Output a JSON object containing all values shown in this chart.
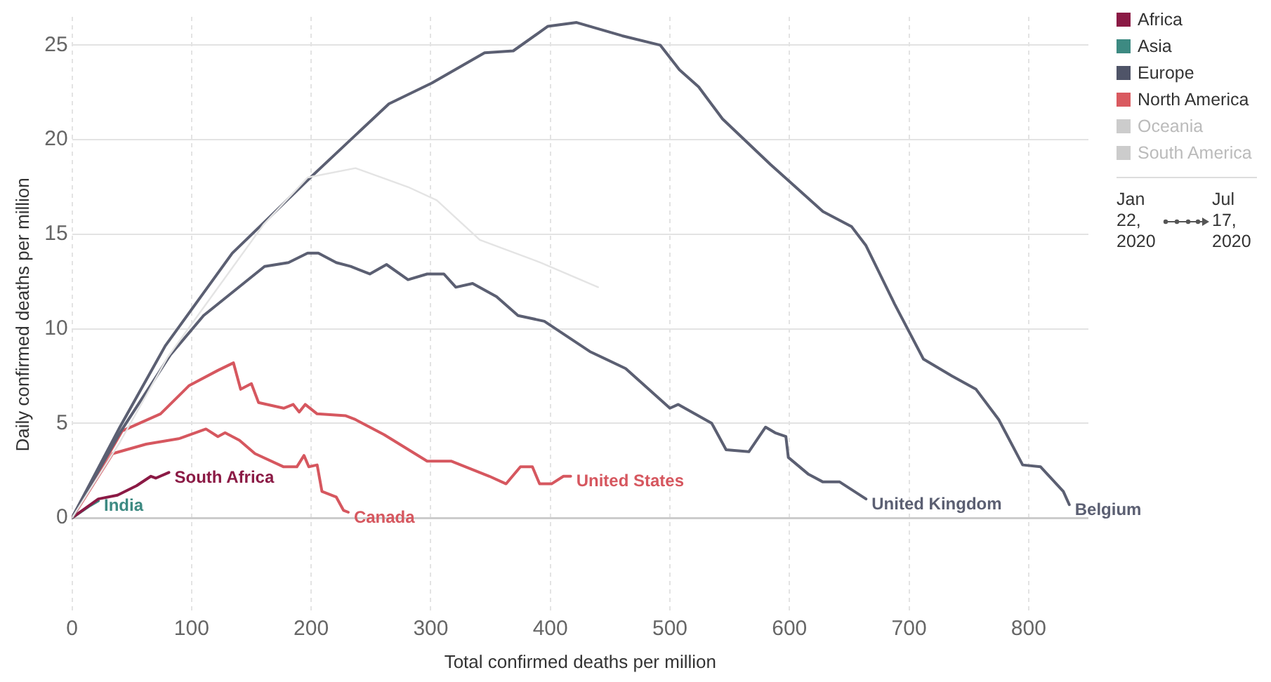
{
  "chart_data": {
    "type": "line",
    "xlabel": "Total confirmed deaths per million",
    "ylabel": "Daily confirmed deaths per million",
    "xlim": [
      0,
      850
    ],
    "ylim": [
      -5,
      26.5
    ],
    "xticks": [
      0,
      100,
      200,
      300,
      400,
      500,
      600,
      700,
      800
    ],
    "yticks": [
      0,
      5,
      10,
      15,
      20,
      25
    ],
    "grid": true,
    "legend": "right",
    "marker": "none",
    "line_style": "solid",
    "annotations": [
      "Jan 22, 2020",
      "Jul 17, 2020"
    ],
    "series": [
      {
        "color": "#e4e4e4",
        "x": [
          0,
          40,
          80,
          120,
          160,
          197,
          237,
          281,
          305,
          341,
          392,
          440
        ],
        "values": [
          0,
          4,
          8.5,
          12,
          15.5,
          18,
          18.5,
          17.5,
          16.8,
          14.7,
          13.5,
          12.2
        ]
      },
      {
        "name": "Belgium",
        "color": "#5b5f72",
        "x": [
          0,
          40,
          78,
          134,
          201,
          265,
          301,
          345,
          369,
          398,
          422,
          460,
          492,
          508,
          524,
          544,
          584,
          628,
          652,
          664,
          688,
          712,
          736,
          756,
          775,
          795,
          810,
          829,
          834
        ],
        "values": [
          0,
          4.8,
          9.1,
          14,
          18.1,
          21.9,
          23,
          24.6,
          24.7,
          26,
          26.2,
          25.5,
          25,
          23.7,
          22.8,
          21.1,
          18.7,
          16.2,
          15.4,
          14.4,
          11.3,
          8.4,
          7.5,
          6.8,
          5.2,
          2.8,
          2.7,
          1.4,
          0.7
        ]
      },
      {
        "name": "United Kingdom",
        "color": "#5b5f72",
        "x": [
          0,
          40,
          82,
          110,
          161,
          181,
          197,
          206,
          221,
          233,
          249,
          263,
          281,
          297,
          311,
          321,
          335,
          355,
          373,
          395,
          433,
          463,
          500,
          507,
          535,
          547,
          566,
          580,
          588,
          597,
          599,
          616,
          628,
          642,
          664
        ],
        "values": [
          0,
          4.5,
          8.6,
          10.7,
          13.3,
          13.5,
          14,
          14,
          13.5,
          13.3,
          12.9,
          13.4,
          12.6,
          12.9,
          12.9,
          12.2,
          12.4,
          11.7,
          10.7,
          10.4,
          8.8,
          7.9,
          5.8,
          6,
          5,
          3.6,
          3.5,
          4.8,
          4.5,
          4.3,
          3.2,
          2.3,
          1.9,
          1.9,
          1
        ]
      },
      {
        "name": "United States",
        "color": "#d6575f",
        "x": [
          0,
          42,
          74,
          98,
          122,
          135,
          141,
          150,
          156,
          177,
          185,
          190,
          195,
          205,
          229,
          237,
          261,
          297,
          317,
          349,
          363,
          375,
          385,
          391,
          401,
          411,
          417
        ],
        "values": [
          0,
          4.6,
          5.5,
          7,
          7.8,
          8.2,
          6.8,
          7.1,
          6.1,
          5.8,
          6,
          5.6,
          6,
          5.5,
          5.4,
          5.2,
          4.4,
          3,
          3,
          2.2,
          1.8,
          2.7,
          2.7,
          1.8,
          1.8,
          2.2,
          2.2
        ]
      },
      {
        "name": "Canada",
        "color": "#d6575f",
        "x": [
          0,
          34,
          62,
          90,
          112,
          122,
          128,
          140,
          153,
          177,
          188,
          194,
          198,
          205,
          209,
          221,
          227,
          231
        ],
        "values": [
          0,
          3.4,
          3.9,
          4.2,
          4.7,
          4.3,
          4.5,
          4.1,
          3.4,
          2.7,
          2.7,
          3.3,
          2.7,
          2.8,
          1.4,
          1.1,
          0.4,
          0.3
        ]
      },
      {
        "name": "South Africa",
        "color": "#8b1a45",
        "x": [
          0,
          22,
          38,
          54,
          66,
          70,
          81
        ],
        "values": [
          0,
          1,
          1.2,
          1.7,
          2.2,
          2.1,
          2.4
        ]
      },
      {
        "name": "India",
        "color": "#3d8a82",
        "x": [
          0,
          14,
          22
        ],
        "values": [
          0,
          0.6,
          0.9
        ]
      },
      {
        "name": "Africa",
        "color": "#8b1a45"
      },
      {
        "name": "Asia",
        "color": "#3d8a82"
      },
      {
        "name": "Europe",
        "color": "#4f5468"
      },
      {
        "name": "North America",
        "color": "#d95a60"
      },
      {
        "name": "Oceania",
        "color": "#cccccc"
      },
      {
        "name": "South America",
        "color": "#cccccc"
      }
    ]
  }
}
